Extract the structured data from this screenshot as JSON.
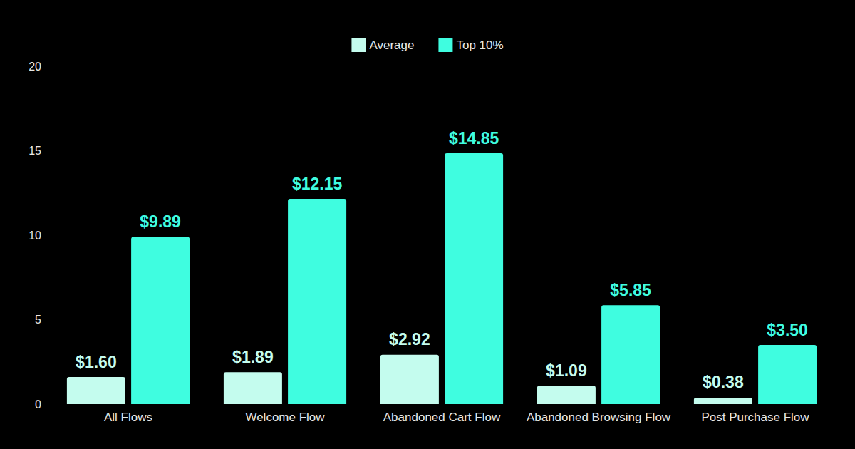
{
  "chart_data": {
    "type": "bar",
    "categories": [
      "All Flows",
      "Welcome Flow",
      "Abandoned Cart Flow",
      "Abandoned Browsing Flow",
      "Post Purchase Flow"
    ],
    "series": [
      {
        "name": "Average",
        "color": "#c4fcee",
        "values": [
          1.6,
          1.89,
          2.92,
          1.09,
          0.38
        ],
        "value_labels": [
          "$1.60",
          "$1.89",
          "$2.92",
          "$1.09",
          "$0.38"
        ]
      },
      {
        "name": "Top 10%",
        "color": "#3ffde0",
        "values": [
          9.89,
          12.15,
          14.85,
          5.85,
          3.5
        ],
        "value_labels": [
          "$9.89",
          "$12.15",
          "$14.85",
          "$5.85",
          "$3.50"
        ]
      }
    ],
    "ylim": [
      0,
      20
    ],
    "yticks": [
      0,
      5,
      10,
      15,
      20
    ],
    "grid": false,
    "legend": "top",
    "data_labels": true
  }
}
